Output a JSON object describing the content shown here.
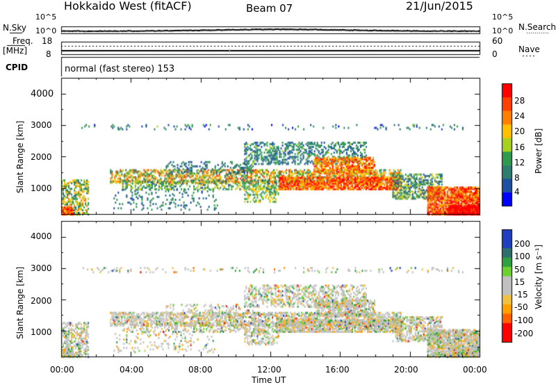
{
  "header": {
    "radar": "Hokkaido West (fitACF)",
    "beam": "Beam 07",
    "date": "21/Jun/2015"
  },
  "noise_panel": {
    "left_label": "N.Sky",
    "right_label": "N.Search",
    "left_ticks": [
      "10^5",
      "10^0"
    ],
    "right_ticks": [
      "10^5",
      "10^0"
    ]
  },
  "freq_panel": {
    "left_label_1": "Freq.",
    "left_label_2": "[MHz]",
    "left_ticks": [
      "18",
      "8"
    ],
    "right_label": "Nave",
    "right_ticks": [
      "60",
      "0"
    ]
  },
  "cpid_panel": {
    "left_label": "CPID",
    "text": "normal (fast stereo) 153"
  },
  "colors": {
    "power": [
      "#0000ff",
      "#1f4fa0",
      "#2e7d6e",
      "#2f9a4e",
      "#a8d020",
      "#ffc000",
      "#ff8000",
      "#ff4000",
      "#ff0000"
    ],
    "velocity_pos": [
      "#1f3fbf",
      "#2e6e6e",
      "#2fa040",
      "#6cd030"
    ],
    "velocity_ground": "#c0c0c0",
    "velocity_neg": [
      "#f0c040",
      "#ffa000",
      "#ff6000",
      "#ff0000"
    ]
  },
  "chart_data": [
    {
      "type": "heatmap",
      "name": "power",
      "ylabel": "Slant Range [km]",
      "y_ticks": [
        "1000",
        "2000",
        "3000",
        "4000"
      ],
      "ylim": [
        180,
        4500
      ],
      "colorbar_label": "Power [dB]",
      "colorbar_ticks": [
        "4",
        "8",
        "12",
        "16",
        "20",
        "24",
        "28"
      ],
      "color_range": [
        0,
        30
      ]
    },
    {
      "type": "heatmap",
      "name": "velocity",
      "ylabel": "Slant Range [km]",
      "y_ticks": [
        "1000",
        "2000",
        "3000",
        "4000"
      ],
      "ylim": [
        180,
        4500
      ],
      "colorbar_label": "Velocity [m s⁻¹]",
      "colorbar_ticks": [
        "200",
        "100",
        "50",
        "15",
        "-15",
        "-50",
        "-100",
        "-200"
      ],
      "xlabel": "Time UT",
      "x_ticks": [
        "00:00",
        "04:00",
        "08:00",
        "12:00",
        "16:00",
        "20:00",
        "00:00"
      ],
      "xlim_hours": [
        0,
        24
      ]
    }
  ]
}
